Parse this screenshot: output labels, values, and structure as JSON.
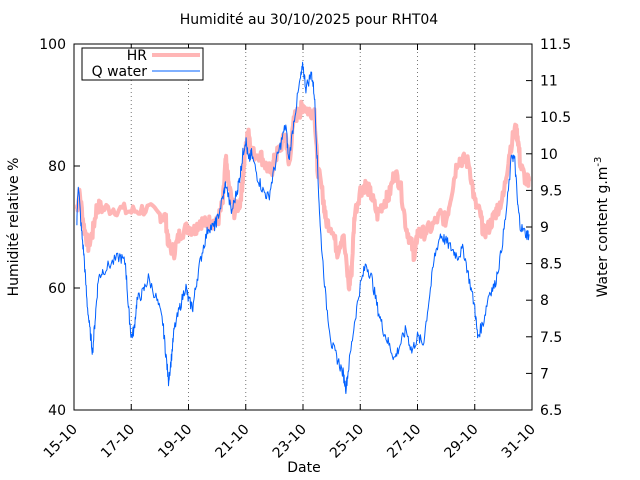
{
  "chart_data": {
    "type": "line",
    "title": "Humidité au 30/10/2025 pour RHT04",
    "xlabel": "Date",
    "ylabel": "Humidité relative %",
    "y2label_base": "Water content g.m",
    "y2label_exp": "-3",
    "x_ticks": [
      "15-10",
      "17-10",
      "19-10",
      "21-10",
      "23-10",
      "25-10",
      "27-10",
      "29-10",
      "31-10"
    ],
    "x_range_days": [
      15,
      31
    ],
    "ylim": [
      40,
      100
    ],
    "y_ticks": [
      40,
      60,
      80,
      100
    ],
    "y2lim": [
      6.5,
      11.5
    ],
    "y2_ticks": [
      "6.5",
      "7",
      "7.5",
      "8",
      "8.5",
      "9",
      "9.5",
      "10",
      "10.5",
      "11",
      "11.5"
    ],
    "grid": "vertical-dotted",
    "legend_position": "top-left",
    "series": [
      {
        "name": "HR",
        "axis": "left",
        "color": "#ffb6b6",
        "points": [
          [
            15.1,
            73
          ],
          [
            15.2,
            75.5
          ],
          [
            15.35,
            70
          ],
          [
            15.5,
            67
          ],
          [
            15.65,
            69
          ],
          [
            15.8,
            73.5
          ],
          [
            16.0,
            73
          ],
          [
            16.5,
            73
          ],
          [
            17.0,
            72.5
          ],
          [
            17.5,
            73
          ],
          [
            18.0,
            72
          ],
          [
            18.2,
            71.5
          ],
          [
            18.3,
            67
          ],
          [
            18.5,
            66
          ],
          [
            18.7,
            69
          ],
          [
            19.0,
            70
          ],
          [
            19.2,
            69.5
          ],
          [
            19.4,
            71
          ],
          [
            19.6,
            70.5
          ],
          [
            19.8,
            71
          ],
          [
            20.0,
            70.5
          ],
          [
            20.2,
            74
          ],
          [
            20.3,
            81
          ],
          [
            20.4,
            77
          ],
          [
            20.6,
            72.5
          ],
          [
            20.8,
            74
          ],
          [
            20.9,
            78
          ],
          [
            21.0,
            83
          ],
          [
            21.1,
            86
          ],
          [
            21.2,
            82
          ],
          [
            21.5,
            82
          ],
          [
            21.7,
            80
          ],
          [
            21.9,
            79
          ],
          [
            22.0,
            81
          ],
          [
            22.2,
            83
          ],
          [
            22.4,
            85
          ],
          [
            22.5,
            80
          ],
          [
            22.7,
            88
          ],
          [
            22.9,
            89
          ],
          [
            23.0,
            90
          ],
          [
            23.2,
            89
          ],
          [
            23.4,
            89
          ],
          [
            23.5,
            80
          ],
          [
            23.7,
            75
          ],
          [
            23.8,
            71
          ],
          [
            24.0,
            70
          ],
          [
            24.2,
            66
          ],
          [
            24.4,
            69
          ],
          [
            24.6,
            60
          ],
          [
            24.7,
            63
          ],
          [
            24.8,
            72
          ],
          [
            25.0,
            76
          ],
          [
            25.2,
            77
          ],
          [
            25.4,
            75
          ],
          [
            25.6,
            72
          ],
          [
            25.8,
            74
          ],
          [
            26.0,
            75
          ],
          [
            26.2,
            79
          ],
          [
            26.4,
            77
          ],
          [
            26.6,
            70
          ],
          [
            26.8,
            67
          ],
          [
            26.9,
            65
          ],
          [
            27.0,
            69
          ],
          [
            27.2,
            69
          ],
          [
            27.5,
            70
          ],
          [
            27.8,
            72
          ],
          [
            28.0,
            71
          ],
          [
            28.2,
            76
          ],
          [
            28.4,
            81
          ],
          [
            28.6,
            81
          ],
          [
            28.8,
            80.5
          ],
          [
            29.0,
            74
          ],
          [
            29.2,
            72
          ],
          [
            29.3,
            69
          ],
          [
            29.5,
            70
          ],
          [
            29.7,
            72
          ],
          [
            29.8,
            73
          ],
          [
            30.0,
            75
          ],
          [
            30.2,
            82
          ],
          [
            30.4,
            86
          ],
          [
            30.5,
            85
          ],
          [
            30.6,
            80
          ],
          [
            30.8,
            77.5
          ],
          [
            30.9,
            77.5
          ]
        ]
      },
      {
        "name": "Q water",
        "axis": "right",
        "color": "#0060ff",
        "points": [
          [
            15.1,
            9.1
          ],
          [
            15.15,
            9.6
          ],
          [
            15.25,
            9.0
          ],
          [
            15.35,
            8.6
          ],
          [
            15.45,
            8.0
          ],
          [
            15.55,
            7.6
          ],
          [
            15.65,
            7.3
          ],
          [
            15.75,
            7.8
          ],
          [
            15.85,
            8.3
          ],
          [
            16.0,
            8.4
          ],
          [
            16.3,
            8.5
          ],
          [
            16.6,
            8.6
          ],
          [
            16.8,
            8.5
          ],
          [
            16.9,
            7.9
          ],
          [
            17.0,
            7.5
          ],
          [
            17.1,
            7.6
          ],
          [
            17.2,
            8.0
          ],
          [
            17.4,
            8.1
          ],
          [
            17.6,
            8.3
          ],
          [
            17.9,
            8.0
          ],
          [
            18.1,
            7.7
          ],
          [
            18.2,
            7.3
          ],
          [
            18.3,
            6.9
          ],
          [
            18.4,
            7.2
          ],
          [
            18.5,
            7.6
          ],
          [
            18.7,
            7.9
          ],
          [
            18.9,
            8.2
          ],
          [
            19.0,
            8.0
          ],
          [
            19.15,
            7.9
          ],
          [
            19.3,
            8.3
          ],
          [
            19.5,
            8.7
          ],
          [
            19.7,
            9.0
          ],
          [
            19.9,
            9.0
          ],
          [
            20.0,
            9.1
          ],
          [
            20.2,
            9.4
          ],
          [
            20.3,
            9.6
          ],
          [
            20.5,
            9.2
          ],
          [
            20.7,
            9.5
          ],
          [
            20.8,
            9.7
          ],
          [
            20.9,
            10.0
          ],
          [
            21.0,
            10.2
          ],
          [
            21.1,
            9.9
          ],
          [
            21.2,
            10.0
          ],
          [
            21.4,
            9.7
          ],
          [
            21.6,
            9.5
          ],
          [
            21.8,
            9.4
          ],
          [
            22.0,
            9.8
          ],
          [
            22.2,
            10.1
          ],
          [
            22.4,
            10.4
          ],
          [
            22.5,
            9.9
          ],
          [
            22.7,
            10.5
          ],
          [
            22.9,
            11.0
          ],
          [
            23.0,
            11.2
          ],
          [
            23.1,
            10.9
          ],
          [
            23.3,
            11.1
          ],
          [
            23.4,
            10.8
          ],
          [
            23.5,
            9.9
          ],
          [
            23.6,
            9.0
          ],
          [
            23.8,
            8.0
          ],
          [
            24.0,
            7.4
          ],
          [
            24.2,
            7.2
          ],
          [
            24.4,
            7.0
          ],
          [
            24.5,
            6.8
          ],
          [
            24.6,
            7.1
          ],
          [
            24.8,
            7.7
          ],
          [
            25.0,
            8.2
          ],
          [
            25.2,
            8.5
          ],
          [
            25.4,
            8.3
          ],
          [
            25.6,
            7.9
          ],
          [
            25.8,
            7.6
          ],
          [
            26.0,
            7.4
          ],
          [
            26.2,
            7.2
          ],
          [
            26.4,
            7.4
          ],
          [
            26.6,
            7.6
          ],
          [
            26.8,
            7.3
          ],
          [
            27.0,
            7.5
          ],
          [
            27.2,
            7.4
          ],
          [
            27.4,
            8.0
          ],
          [
            27.6,
            8.6
          ],
          [
            27.8,
            8.9
          ],
          [
            28.0,
            8.8
          ],
          [
            28.2,
            8.7
          ],
          [
            28.4,
            8.6
          ],
          [
            28.6,
            8.7
          ],
          [
            28.8,
            8.3
          ],
          [
            29.0,
            7.9
          ],
          [
            29.1,
            7.5
          ],
          [
            29.3,
            7.7
          ],
          [
            29.5,
            8.1
          ],
          [
            29.7,
            8.2
          ],
          [
            29.9,
            8.6
          ],
          [
            30.1,
            9.2
          ],
          [
            30.3,
            10.0
          ],
          [
            30.4,
            9.9
          ],
          [
            30.5,
            9.3
          ],
          [
            30.6,
            9.0
          ],
          [
            30.8,
            8.9
          ],
          [
            30.9,
            8.9
          ]
        ]
      }
    ]
  }
}
